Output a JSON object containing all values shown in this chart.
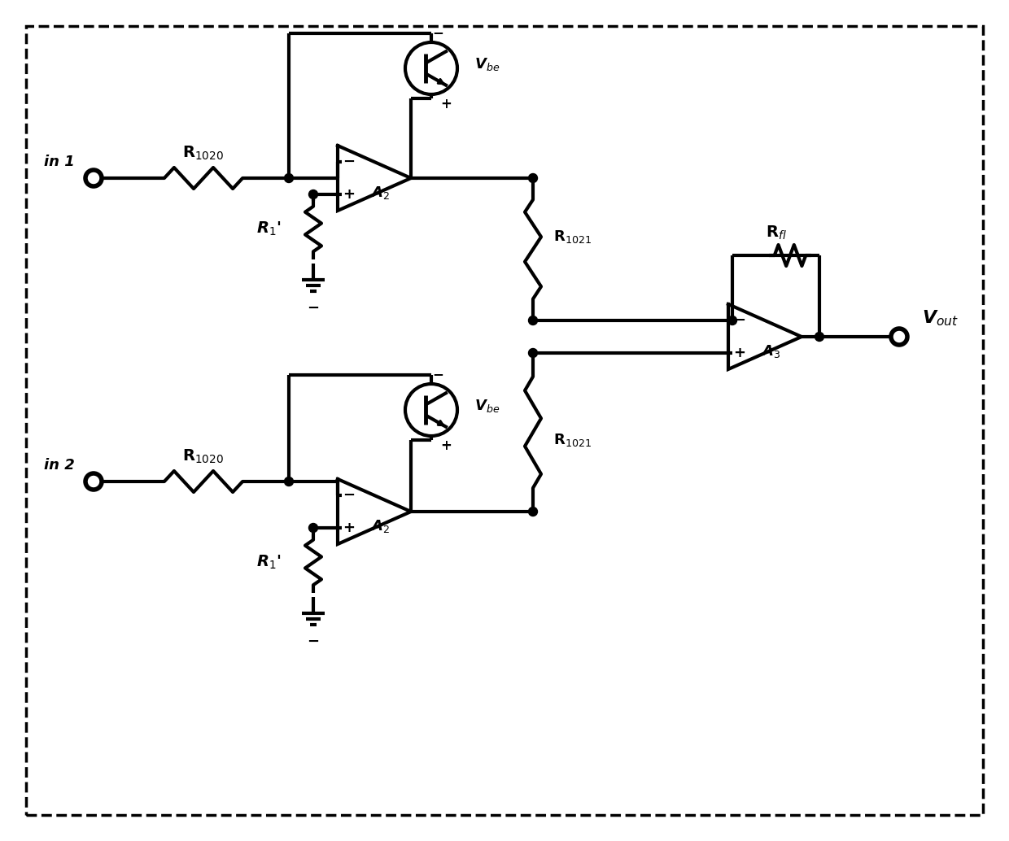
{
  "bg_color": "#ffffff",
  "line_color": "#000000",
  "line_width": 3.0,
  "fig_width": 12.4,
  "fig_height": 10.34,
  "dpi": 100
}
